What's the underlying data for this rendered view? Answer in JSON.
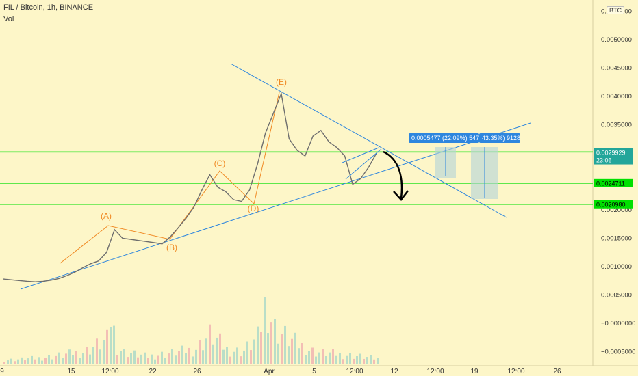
{
  "header": {
    "symbol": "FIL / Bitcoin, 1h, BINANCE",
    "volume_label": "Vol",
    "currency_badge": "BTC"
  },
  "chart_data": {
    "type": "line",
    "title": "FIL / Bitcoin, 1h, BINANCE",
    "x_ticks": [
      "9",
      "15",
      "12:00",
      "22",
      "26",
      "Apr",
      "5",
      "12:00",
      "12",
      "12:00",
      "19",
      "12:00",
      "26"
    ],
    "y_ticks": [
      "0.0055000",
      "0.0050000",
      "0.0045000",
      "0.0040000",
      "0.0035000",
      "0.0025000",
      "0.0020000",
      "0.0015000",
      "0.0010000",
      "0.0005000",
      "−0.0000000",
      "−0.0005000"
    ],
    "ylim": [
      -0.00075,
      0.0057
    ],
    "series": [
      {
        "name": "",
        "x": [
          0,
          3,
          6,
          8,
          10,
          12,
          14,
          16,
          18,
          20,
          22,
          24,
          26,
          28,
          30,
          32,
          34,
          36,
          38,
          40,
          42,
          44,
          46,
          48,
          50,
          52,
          54,
          56,
          58,
          60,
          62,
          64,
          66,
          68,
          70,
          72,
          74,
          76,
          78,
          80,
          82,
          84,
          86,
          88,
          90,
          92,
          94
        ],
        "y": [
          0.00078,
          0.00076,
          0.00074,
          0.00073,
          0.00074,
          0.00076,
          0.00079,
          0.00084,
          0.0009,
          0.00098,
          0.00105,
          0.0011,
          0.00125,
          0.00165,
          0.0015,
          0.00148,
          0.00146,
          0.00144,
          0.00142,
          0.0014,
          0.00152,
          0.00168,
          0.00185,
          0.00205,
          0.00235,
          0.00262,
          0.0024,
          0.00232,
          0.00218,
          0.00215,
          0.00235,
          0.0028,
          0.00335,
          0.0037,
          0.00405,
          0.00325,
          0.00305,
          0.00295,
          0.0033,
          0.0034,
          0.0032,
          0.0031,
          0.00295,
          0.00245,
          0.00255,
          0.00275,
          0.003
        ]
      },
      {
        "name": "Vol",
        "x": [
          0,
          10,
          20,
          26,
          27,
          28,
          30,
          36,
          40,
          48,
          52,
          56,
          60,
          64,
          66,
          68,
          72,
          78,
          84,
          90,
          94
        ],
        "y": [
          3e-05,
          5e-05,
          0.0001,
          0.0002,
          0.00045,
          0.00015,
          0.0001,
          6e-05,
          8e-05,
          0.00012,
          0.00025,
          0.00012,
          0.0001,
          0.00022,
          0.00055,
          0.0003,
          0.0002,
          0.0001,
          8e-05,
          6e-05,
          4e-05
        ]
      }
    ],
    "wave_labels": [
      "(A)",
      "(B)",
      "(C)",
      "(D)",
      "(E)"
    ],
    "horizontal_levels": [
      {
        "label": "0.0030188",
        "value": 0.0030188,
        "color": "#00e000"
      },
      {
        "label": "0.0024711",
        "value": 0.0024711,
        "color": "#00e000"
      },
      {
        "label": "0.0020980",
        "value": 0.002098,
        "color": "#00e000"
      }
    ],
    "last_price": {
      "value": "0.0029929",
      "countdown": "23:06",
      "color": "#22a69a"
    },
    "measure_labels": [
      "0.0005477 (22.09%) 5477",
      "43.35%) 9128"
    ],
    "grid": false,
    "colors": {
      "price": "#6e6e6e",
      "trendline": "#2e86de",
      "wave": "#f08a24",
      "level": "#00e000",
      "measure": "#2e86de",
      "arrow": "#000000",
      "background": "#fdf6c8"
    }
  }
}
